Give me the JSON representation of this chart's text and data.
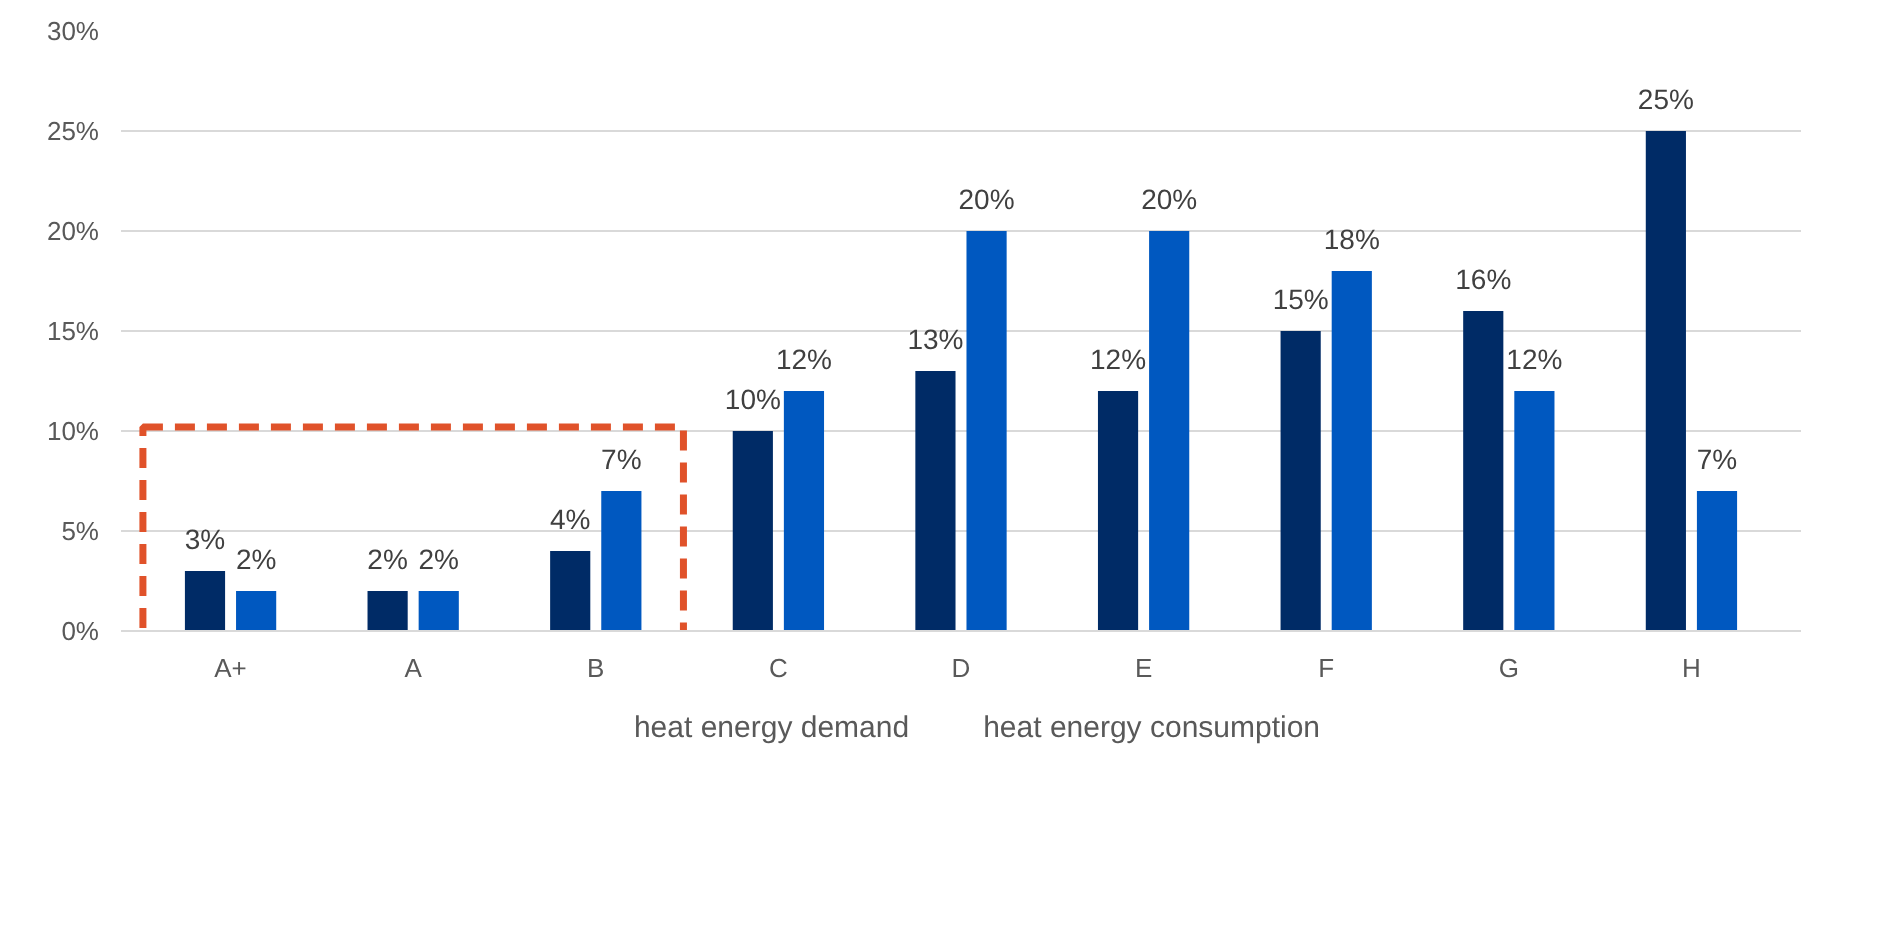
{
  "chart_data": {
    "type": "bar",
    "categories": [
      "A+",
      "A",
      "B",
      "C",
      "D",
      "E",
      "F",
      "G",
      "H"
    ],
    "series": [
      {
        "name": "heat energy demand",
        "color": "#002b66",
        "values": [
          3,
          2,
          4,
          10,
          13,
          12,
          15,
          16,
          25
        ],
        "value_labels": [
          "3%",
          "2%",
          "4%",
          "10%",
          "13%",
          "12%",
          "15%",
          "16%",
          "25%"
        ]
      },
      {
        "name": "heat energy consumption",
        "color": "#0058c0",
        "values": [
          2,
          2,
          7,
          12,
          20,
          20,
          18,
          12,
          7
        ],
        "value_labels": [
          "2%",
          "2%",
          "7%",
          "12%",
          "20%",
          "20%",
          "18%",
          "12%",
          "7%"
        ]
      }
    ],
    "ylim": [
      0,
      30
    ],
    "yticks": [
      {
        "value": 0,
        "label": "0%"
      },
      {
        "value": 5,
        "label": "5%"
      },
      {
        "value": 10,
        "label": "10%"
      },
      {
        "value": 15,
        "label": "15%"
      },
      {
        "value": 20,
        "label": "20%"
      },
      {
        "value": 25,
        "label": "25%"
      },
      {
        "value": 30,
        "label": "30%"
      }
    ],
    "grid": "y",
    "legend": "bottom"
  }
}
